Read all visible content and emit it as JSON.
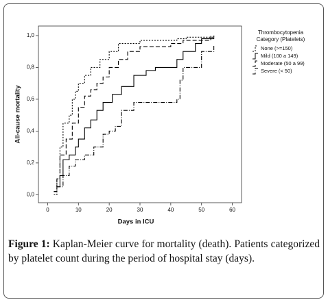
{
  "chart_data": {
    "type": "step-line",
    "x_label": "Days in ICU",
    "y_label": "All-cause mortality",
    "legend_title": [
      "Thrombocytopenia",
      "Category (Platelets)"
    ],
    "xlim": [
      -3,
      63
    ],
    "ylim": [
      -0.05,
      1.06
    ],
    "xticks": [
      0,
      10,
      20,
      30,
      40,
      50,
      60
    ],
    "yticks": [
      {
        "value": 0,
        "label": "0,0"
      },
      {
        "value": 0.2,
        "label": "0,2"
      },
      {
        "value": 0.4,
        "label": "0,4"
      },
      {
        "value": 0.6,
        "label": "0,6"
      },
      {
        "value": 0.8,
        "label": "0,8"
      },
      {
        "value": 1,
        "label": "1,0"
      }
    ],
    "grid": false,
    "series": [
      {
        "name": "None (>=150)",
        "color": "#000000",
        "dash": "2,2",
        "x": [
          2,
          3,
          4,
          5,
          7,
          8,
          9,
          10,
          12,
          14,
          17,
          20,
          23,
          30,
          42,
          45,
          54
        ],
        "values": [
          0,
          0.1,
          0.3,
          0.45,
          0.5,
          0.6,
          0.65,
          0.7,
          0.75,
          0.8,
          0.85,
          0.9,
          0.95,
          0.97,
          0.98,
          0.99,
          1.0
        ]
      },
      {
        "name": "Mild (100 a 149)",
        "color": "#000000",
        "dash": "none",
        "x": [
          3,
          4,
          5,
          7,
          9,
          10,
          12,
          14,
          16,
          18,
          21,
          24,
          28,
          32,
          35,
          42,
          44,
          48,
          50,
          54
        ],
        "values": [
          0.05,
          0.12,
          0.22,
          0.25,
          0.3,
          0.35,
          0.42,
          0.47,
          0.53,
          0.58,
          0.63,
          0.68,
          0.75,
          0.78,
          0.8,
          0.85,
          0.9,
          0.95,
          0.98,
          1.0
        ]
      },
      {
        "name": "Moderate (50 a 99)",
        "color": "#000000",
        "dash": "6,3",
        "x": [
          2,
          3,
          4,
          6,
          8,
          10,
          12,
          14,
          16,
          18,
          20,
          23,
          26,
          30,
          40,
          44,
          53
        ],
        "values": [
          0.02,
          0.1,
          0.25,
          0.35,
          0.45,
          0.55,
          0.62,
          0.66,
          0.7,
          0.74,
          0.8,
          0.85,
          0.9,
          0.93,
          0.95,
          0.97,
          1.0
        ]
      },
      {
        "name": "Severe (< 50)",
        "color": "#000000",
        "dash": "6,2,1,2",
        "x": [
          2,
          3,
          5,
          7,
          9,
          12,
          15,
          18,
          20,
          22,
          24,
          28,
          42,
          43,
          44,
          50,
          54
        ],
        "values": [
          0.02,
          0.05,
          0.12,
          0.18,
          0.22,
          0.25,
          0.3,
          0.38,
          0.4,
          0.43,
          0.53,
          0.58,
          0.6,
          0.72,
          0.8,
          0.9,
          0.94
        ]
      }
    ]
  },
  "figure": {
    "label": "Figure 1:",
    "caption": "Kaplan-Meier curve for mortality (death). Patients categorized by platelet count during the period of hospital stay (days)."
  }
}
